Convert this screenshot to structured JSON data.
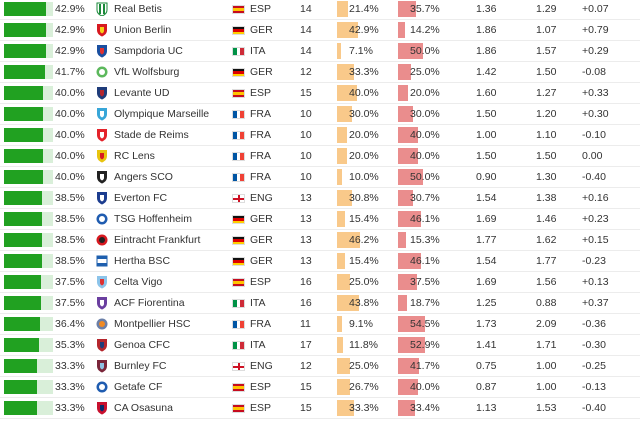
{
  "colors": {
    "pct_fill": "#21a121",
    "pct_track": "#d9efd9",
    "bar1": "#f9c98a",
    "bar2": "#ea8d8d"
  },
  "rows": [
    {
      "pct": "42.9%",
      "pct_value": 42.9,
      "team": "Real Betis",
      "crest_icon": "real-betis-crest-icon",
      "flag_icon": "spain-flag-icon",
      "country": "ESP",
      "matches": "14",
      "p1": "21.4%",
      "p1_value": 21.4,
      "p2": "35.7%",
      "p2_value": 35.7,
      "v1": "1.36",
      "v2": "1.29",
      "diff": "+0.07"
    },
    {
      "pct": "42.9%",
      "pct_value": 42.9,
      "team": "Union Berlin",
      "crest_icon": "union-berlin-crest-icon",
      "flag_icon": "germany-flag-icon",
      "country": "GER",
      "matches": "14",
      "p1": "42.9%",
      "p1_value": 42.9,
      "p2": "14.2%",
      "p2_value": 14.2,
      "v1": "1.86",
      "v2": "1.07",
      "diff": "+0.79"
    },
    {
      "pct": "42.9%",
      "pct_value": 42.9,
      "team": "Sampdoria UC",
      "crest_icon": "sampdoria-crest-icon",
      "flag_icon": "italy-flag-icon",
      "country": "ITA",
      "matches": "14",
      "p1": "7.1%",
      "p1_value": 7.1,
      "p2": "50.0%",
      "p2_value": 50.0,
      "v1": "1.86",
      "v2": "1.57",
      "diff": "+0.29"
    },
    {
      "pct": "41.7%",
      "pct_value": 41.7,
      "team": "VfL Wolfsburg",
      "crest_icon": "wolfsburg-crest-icon",
      "flag_icon": "germany-flag-icon",
      "country": "GER",
      "matches": "12",
      "p1": "33.3%",
      "p1_value": 33.3,
      "p2": "25.0%",
      "p2_value": 25.0,
      "v1": "1.42",
      "v2": "1.50",
      "diff": "-0.08"
    },
    {
      "pct": "40.0%",
      "pct_value": 40.0,
      "team": "Levante UD",
      "crest_icon": "levante-crest-icon",
      "flag_icon": "spain-flag-icon",
      "country": "ESP",
      "matches": "15",
      "p1": "40.0%",
      "p1_value": 40.0,
      "p2": "20.0%",
      "p2_value": 20.0,
      "v1": "1.60",
      "v2": "1.27",
      "diff": "+0.33"
    },
    {
      "pct": "40.0%",
      "pct_value": 40.0,
      "team": "Olympique Marseille",
      "crest_icon": "marseille-crest-icon",
      "flag_icon": "france-flag-icon",
      "country": "FRA",
      "matches": "10",
      "p1": "30.0%",
      "p1_value": 30.0,
      "p2": "30.0%",
      "p2_value": 30.0,
      "v1": "1.50",
      "v2": "1.20",
      "diff": "+0.30"
    },
    {
      "pct": "40.0%",
      "pct_value": 40.0,
      "team": "Stade de Reims",
      "crest_icon": "reims-crest-icon",
      "flag_icon": "france-flag-icon",
      "country": "FRA",
      "matches": "10",
      "p1": "20.0%",
      "p1_value": 20.0,
      "p2": "40.0%",
      "p2_value": 40.0,
      "v1": "1.00",
      "v2": "1.10",
      "diff": "-0.10"
    },
    {
      "pct": "40.0%",
      "pct_value": 40.0,
      "team": "RC Lens",
      "crest_icon": "lens-crest-icon",
      "flag_icon": "france-flag-icon",
      "country": "FRA",
      "matches": "10",
      "p1": "20.0%",
      "p1_value": 20.0,
      "p2": "40.0%",
      "p2_value": 40.0,
      "v1": "1.50",
      "v2": "1.50",
      "diff": "0.00"
    },
    {
      "pct": "40.0%",
      "pct_value": 40.0,
      "team": "Angers SCO",
      "crest_icon": "angers-crest-icon",
      "flag_icon": "france-flag-icon",
      "country": "FRA",
      "matches": "10",
      "p1": "10.0%",
      "p1_value": 10.0,
      "p2": "50.0%",
      "p2_value": 50.0,
      "v1": "0.90",
      "v2": "1.30",
      "diff": "-0.40"
    },
    {
      "pct": "38.5%",
      "pct_value": 38.5,
      "team": "Everton FC",
      "crest_icon": "everton-crest-icon",
      "flag_icon": "england-flag-icon",
      "country": "ENG",
      "matches": "13",
      "p1": "30.8%",
      "p1_value": 30.8,
      "p2": "30.7%",
      "p2_value": 30.7,
      "v1": "1.54",
      "v2": "1.38",
      "diff": "+0.16"
    },
    {
      "pct": "38.5%",
      "pct_value": 38.5,
      "team": "TSG Hoffenheim",
      "crest_icon": "hoffenheim-crest-icon",
      "flag_icon": "germany-flag-icon",
      "country": "GER",
      "matches": "13",
      "p1": "15.4%",
      "p1_value": 15.4,
      "p2": "46.1%",
      "p2_value": 46.1,
      "v1": "1.69",
      "v2": "1.46",
      "diff": "+0.23"
    },
    {
      "pct": "38.5%",
      "pct_value": 38.5,
      "team": "Eintracht Frankfurt",
      "crest_icon": "frankfurt-crest-icon",
      "flag_icon": "germany-flag-icon",
      "country": "GER",
      "matches": "13",
      "p1": "46.2%",
      "p1_value": 46.2,
      "p2": "15.3%",
      "p2_value": 15.3,
      "v1": "1.77",
      "v2": "1.62",
      "diff": "+0.15"
    },
    {
      "pct": "38.5%",
      "pct_value": 38.5,
      "team": "Hertha BSC",
      "crest_icon": "hertha-crest-icon",
      "flag_icon": "germany-flag-icon",
      "country": "GER",
      "matches": "13",
      "p1": "15.4%",
      "p1_value": 15.4,
      "p2": "46.1%",
      "p2_value": 46.1,
      "v1": "1.54",
      "v2": "1.77",
      "diff": "-0.23"
    },
    {
      "pct": "37.5%",
      "pct_value": 37.5,
      "team": "Celta Vigo",
      "crest_icon": "celta-crest-icon",
      "flag_icon": "spain-flag-icon",
      "country": "ESP",
      "matches": "16",
      "p1": "25.0%",
      "p1_value": 25.0,
      "p2": "37.5%",
      "p2_value": 37.5,
      "v1": "1.69",
      "v2": "1.56",
      "diff": "+0.13"
    },
    {
      "pct": "37.5%",
      "pct_value": 37.5,
      "team": "ACF Fiorentina",
      "crest_icon": "fiorentina-crest-icon",
      "flag_icon": "italy-flag-icon",
      "country": "ITA",
      "matches": "16",
      "p1": "43.8%",
      "p1_value": 43.8,
      "p2": "18.7%",
      "p2_value": 18.7,
      "v1": "1.25",
      "v2": "0.88",
      "diff": "+0.37"
    },
    {
      "pct": "36.4%",
      "pct_value": 36.4,
      "team": "Montpellier HSC",
      "crest_icon": "montpellier-crest-icon",
      "flag_icon": "france-flag-icon",
      "country": "FRA",
      "matches": "11",
      "p1": "9.1%",
      "p1_value": 9.1,
      "p2": "54.5%",
      "p2_value": 54.5,
      "v1": "1.73",
      "v2": "2.09",
      "diff": "-0.36"
    },
    {
      "pct": "35.3%",
      "pct_value": 35.3,
      "team": "Genoa CFC",
      "crest_icon": "genoa-crest-icon",
      "flag_icon": "italy-flag-icon",
      "country": "ITA",
      "matches": "17",
      "p1": "11.8%",
      "p1_value": 11.8,
      "p2": "52.9%",
      "p2_value": 52.9,
      "v1": "1.41",
      "v2": "1.71",
      "diff": "-0.30"
    },
    {
      "pct": "33.3%",
      "pct_value": 33.3,
      "team": "Burnley FC",
      "crest_icon": "burnley-crest-icon",
      "flag_icon": "england-flag-icon",
      "country": "ENG",
      "matches": "12",
      "p1": "25.0%",
      "p1_value": 25.0,
      "p2": "41.7%",
      "p2_value": 41.7,
      "v1": "0.75",
      "v2": "1.00",
      "diff": "-0.25"
    },
    {
      "pct": "33.3%",
      "pct_value": 33.3,
      "team": "Getafe CF",
      "crest_icon": "getafe-crest-icon",
      "flag_icon": "spain-flag-icon",
      "country": "ESP",
      "matches": "15",
      "p1": "26.7%",
      "p1_value": 26.7,
      "p2": "40.0%",
      "p2_value": 40.0,
      "v1": "0.87",
      "v2": "1.00",
      "diff": "-0.13"
    },
    {
      "pct": "33.3%",
      "pct_value": 33.3,
      "team": "CA Osasuna",
      "crest_icon": "osasuna-crest-icon",
      "flag_icon": "spain-flag-icon",
      "country": "ESP",
      "matches": "15",
      "p1": "33.3%",
      "p1_value": 33.3,
      "p2": "33.4%",
      "p2_value": 33.4,
      "v1": "1.13",
      "v2": "1.53",
      "diff": "-0.40"
    }
  ]
}
